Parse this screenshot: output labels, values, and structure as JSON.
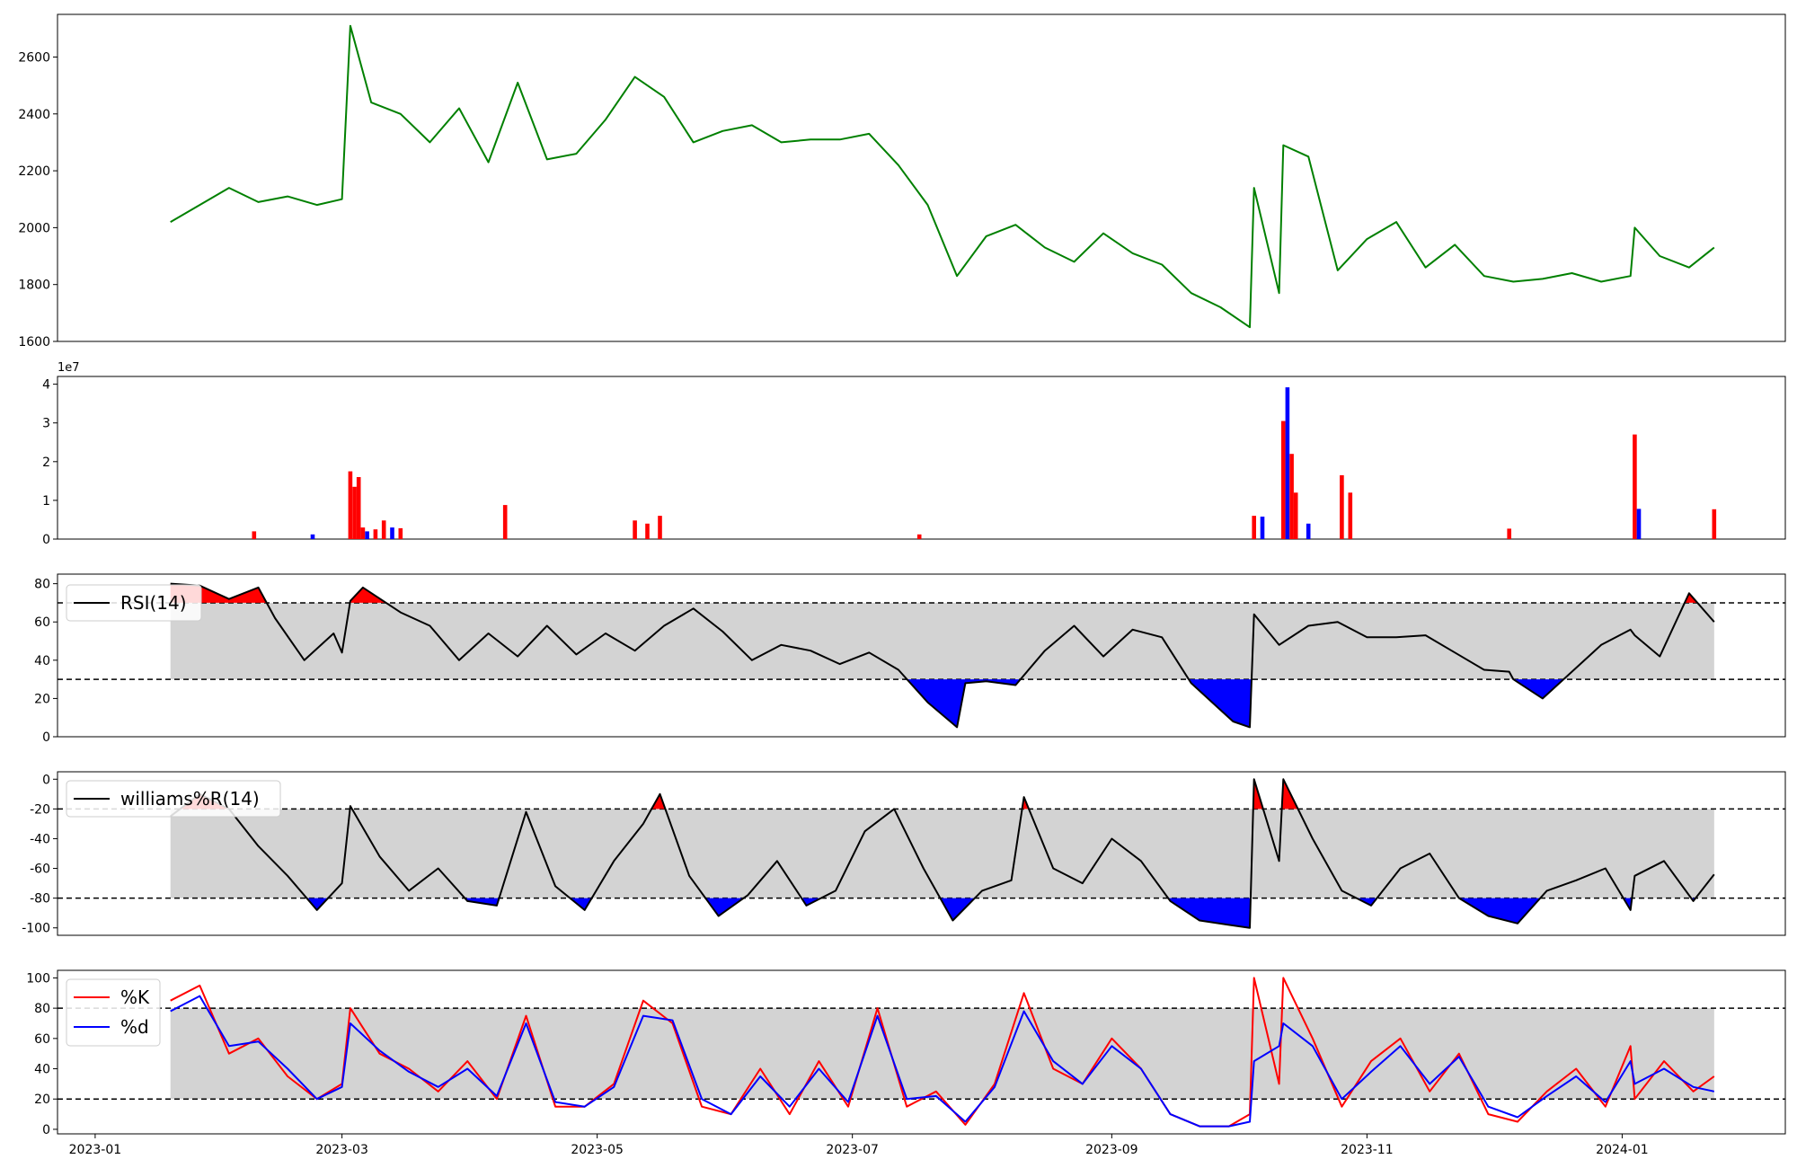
{
  "colors": {
    "price": "#008000",
    "up": "#ff0000",
    "down": "#0000ff",
    "band": "#d3d3d3",
    "line": "#000000",
    "k": "#ff0000",
    "d": "#0000ff"
  },
  "chart_data": [
    {
      "type": "line",
      "panel": "price",
      "ylim": [
        1600,
        2750
      ],
      "yticks": [
        1600,
        1800,
        2000,
        2200,
        2400,
        2600
      ],
      "x": [
        "2023-01-19",
        "2023-01-26",
        "2023-02-02",
        "2023-02-09",
        "2023-02-16",
        "2023-02-23",
        "2023-03-01",
        "2023-03-03",
        "2023-03-08",
        "2023-03-15",
        "2023-03-22",
        "2023-03-29",
        "2023-04-05",
        "2023-04-12",
        "2023-04-19",
        "2023-04-26",
        "2023-05-03",
        "2023-05-10",
        "2023-05-17",
        "2023-05-24",
        "2023-05-31",
        "2023-06-07",
        "2023-06-14",
        "2023-06-21",
        "2023-06-28",
        "2023-07-05",
        "2023-07-12",
        "2023-07-19",
        "2023-07-26",
        "2023-08-02",
        "2023-08-09",
        "2023-08-16",
        "2023-08-23",
        "2023-08-30",
        "2023-09-06",
        "2023-09-13",
        "2023-09-20",
        "2023-09-27",
        "2023-10-04",
        "2023-10-05",
        "2023-10-11",
        "2023-10-12",
        "2023-10-18",
        "2023-10-25",
        "2023-11-01",
        "2023-11-08",
        "2023-11-15",
        "2023-11-22",
        "2023-11-29",
        "2023-12-06",
        "2023-12-13",
        "2023-12-20",
        "2023-12-27",
        "2024-01-03",
        "2024-01-04",
        "2024-01-10",
        "2024-01-17",
        "2024-01-23"
      ],
      "series": [
        {
          "values": [
            2020,
            2080,
            2140,
            2090,
            2110,
            2080,
            2100,
            2710,
            2440,
            2400,
            2300,
            2420,
            2230,
            2510,
            2240,
            2260,
            2380,
            2530,
            2460,
            2300,
            2340,
            2360,
            2300,
            2310,
            2310,
            2330,
            2220,
            2080,
            1830,
            1970,
            2010,
            1930,
            1880,
            1980,
            1910,
            1870,
            1770,
            1720,
            1650,
            2140,
            1770,
            2290,
            2250,
            1850,
            1960,
            2020,
            1860,
            1940,
            1830,
            1810,
            1820,
            1840,
            1810,
            1830,
            2000,
            1900,
            1860,
            1930
          ]
        }
      ]
    },
    {
      "type": "bar",
      "panel": "volume",
      "ylim": [
        0,
        4.2
      ],
      "yticks": [
        0,
        1,
        2,
        3,
        4
      ],
      "exponent_label": "1e7",
      "x": [
        "2023-02-08",
        "2023-02-22",
        "2023-03-03",
        "2023-03-04",
        "2023-03-05",
        "2023-03-06",
        "2023-03-07",
        "2023-03-09",
        "2023-03-11",
        "2023-03-13",
        "2023-03-15",
        "2023-04-09",
        "2023-05-10",
        "2023-05-13",
        "2023-05-16",
        "2023-07-17",
        "2023-10-05",
        "2023-10-07",
        "2023-10-12",
        "2023-10-13",
        "2023-10-14",
        "2023-10-15",
        "2023-10-18",
        "2023-10-26",
        "2023-10-28",
        "2023-12-05",
        "2024-01-04",
        "2024-01-05",
        "2024-01-23"
      ],
      "values": [
        0.2,
        0.12,
        1.75,
        1.35,
        1.6,
        0.3,
        0.2,
        0.25,
        0.48,
        0.3,
        0.28,
        0.88,
        0.48,
        0.4,
        0.6,
        0.12,
        0.6,
        0.58,
        3.05,
        3.92,
        2.2,
        1.2,
        0.4,
        1.65,
        1.2,
        0.27,
        2.7,
        0.78,
        0.77
      ],
      "directions": [
        "up",
        "down",
        "up",
        "up",
        "up",
        "up",
        "down",
        "up",
        "up",
        "down",
        "up",
        "up",
        "up",
        "up",
        "up",
        "up",
        "up",
        "down",
        "up",
        "down",
        "up",
        "up",
        "down",
        "up",
        "up",
        "up",
        "up",
        "down",
        "up"
      ]
    },
    {
      "type": "line",
      "panel": "rsi",
      "ylim": [
        0,
        85
      ],
      "yticks": [
        0,
        20,
        40,
        60,
        80
      ],
      "thresholds": [
        30,
        70
      ],
      "x": [
        "2023-01-19",
        "2023-01-26",
        "2023-02-02",
        "2023-02-09",
        "2023-02-13",
        "2023-02-20",
        "2023-02-27",
        "2023-03-01",
        "2023-03-03",
        "2023-03-06",
        "2023-03-15",
        "2023-03-22",
        "2023-03-29",
        "2023-04-05",
        "2023-04-12",
        "2023-04-19",
        "2023-04-26",
        "2023-05-03",
        "2023-05-10",
        "2023-05-17",
        "2023-05-24",
        "2023-05-31",
        "2023-06-07",
        "2023-06-14",
        "2023-06-21",
        "2023-06-28",
        "2023-07-05",
        "2023-07-12",
        "2023-07-19",
        "2023-07-26",
        "2023-07-28",
        "2023-08-02",
        "2023-08-09",
        "2023-08-16",
        "2023-08-23",
        "2023-08-30",
        "2023-09-06",
        "2023-09-13",
        "2023-09-20",
        "2023-09-27",
        "2023-09-30",
        "2023-10-04",
        "2023-10-05",
        "2023-10-11",
        "2023-10-18",
        "2023-10-25",
        "2023-11-01",
        "2023-11-08",
        "2023-11-15",
        "2023-11-22",
        "2023-11-29",
        "2023-12-05",
        "2023-12-06",
        "2023-12-13",
        "2023-12-20",
        "2023-12-27",
        "2024-01-03",
        "2024-01-04",
        "2024-01-10",
        "2024-01-17",
        "2024-01-23"
      ],
      "series": [
        {
          "name": "RSI(14)",
          "values": [
            80,
            79,
            72,
            78,
            62,
            40,
            54,
            44,
            71,
            78,
            65,
            58,
            40,
            54,
            42,
            58,
            43,
            54,
            45,
            58,
            67,
            55,
            40,
            48,
            45,
            38,
            44,
            35,
            18,
            5,
            28,
            29,
            27,
            45,
            58,
            42,
            56,
            52,
            28,
            14,
            8,
            5,
            64,
            48,
            58,
            60,
            52,
            52,
            53,
            44,
            35,
            34,
            30,
            20,
            34,
            48,
            56,
            53,
            42,
            75,
            60
          ]
        }
      ]
    },
    {
      "type": "line",
      "panel": "williams",
      "ylim": [
        -105,
        5
      ],
      "yticks": [
        -100,
        -80,
        -60,
        -40,
        -20,
        0
      ],
      "thresholds": [
        -80,
        -20
      ],
      "x": [
        "2023-01-19",
        "2023-01-26",
        "2023-02-02",
        "2023-02-09",
        "2023-02-16",
        "2023-02-23",
        "2023-03-01",
        "2023-03-03",
        "2023-03-10",
        "2023-03-17",
        "2023-03-24",
        "2023-03-31",
        "2023-04-07",
        "2023-04-14",
        "2023-04-21",
        "2023-04-28",
        "2023-05-05",
        "2023-05-12",
        "2023-05-16",
        "2023-05-23",
        "2023-05-30",
        "2023-06-06",
        "2023-06-13",
        "2023-06-20",
        "2023-06-27",
        "2023-07-04",
        "2023-07-11",
        "2023-07-18",
        "2023-07-25",
        "2023-08-01",
        "2023-08-08",
        "2023-08-11",
        "2023-08-18",
        "2023-08-25",
        "2023-09-01",
        "2023-09-08",
        "2023-09-15",
        "2023-09-22",
        "2023-09-29",
        "2023-10-04",
        "2023-10-05",
        "2023-10-11",
        "2023-10-12",
        "2023-10-19",
        "2023-10-26",
        "2023-11-02",
        "2023-11-09",
        "2023-11-16",
        "2023-11-23",
        "2023-11-30",
        "2023-12-07",
        "2023-12-14",
        "2023-12-21",
        "2023-12-28",
        "2024-01-03",
        "2024-01-04",
        "2024-01-11",
        "2024-01-18",
        "2024-01-23"
      ],
      "series": [
        {
          "name": "williams%R(14)",
          "values": [
            -25,
            -10,
            -20,
            -45,
            -65,
            -88,
            -70,
            -18,
            -52,
            -75,
            -60,
            -82,
            -85,
            -22,
            -72,
            -88,
            -55,
            -30,
            -10,
            -65,
            -92,
            -78,
            -55,
            -85,
            -75,
            -35,
            -20,
            -60,
            -95,
            -75,
            -68,
            -12,
            -60,
            -70,
            -40,
            -55,
            -82,
            -95,
            -98,
            -100,
            0,
            -55,
            0,
            -40,
            -75,
            -85,
            -60,
            -50,
            -80,
            -92,
            -97,
            -75,
            -68,
            -60,
            -88,
            -65,
            -55,
            -82,
            -64
          ]
        }
      ]
    },
    {
      "type": "line",
      "panel": "stochastic",
      "ylim": [
        -3,
        105
      ],
      "yticks": [
        0,
        20,
        40,
        60,
        80,
        100
      ],
      "thresholds": [
        20,
        80
      ],
      "xticks": [
        "2023-01",
        "2023-03",
        "2023-05",
        "2023-07",
        "2023-09",
        "2023-11",
        "2024-01"
      ],
      "x": [
        "2023-01-19",
        "2023-01-26",
        "2023-02-02",
        "2023-02-09",
        "2023-02-16",
        "2023-02-23",
        "2023-03-01",
        "2023-03-03",
        "2023-03-10",
        "2023-03-17",
        "2023-03-24",
        "2023-03-31",
        "2023-04-07",
        "2023-04-14",
        "2023-04-21",
        "2023-04-28",
        "2023-05-05",
        "2023-05-12",
        "2023-05-19",
        "2023-05-26",
        "2023-06-02",
        "2023-06-09",
        "2023-06-16",
        "2023-06-23",
        "2023-06-30",
        "2023-07-07",
        "2023-07-14",
        "2023-07-21",
        "2023-07-28",
        "2023-08-04",
        "2023-08-11",
        "2023-08-18",
        "2023-08-25",
        "2023-09-01",
        "2023-09-08",
        "2023-09-15",
        "2023-09-22",
        "2023-09-29",
        "2023-10-04",
        "2023-10-05",
        "2023-10-11",
        "2023-10-12",
        "2023-10-19",
        "2023-10-26",
        "2023-11-02",
        "2023-11-09",
        "2023-11-16",
        "2023-11-23",
        "2023-11-30",
        "2023-12-07",
        "2023-12-14",
        "2023-12-21",
        "2023-12-28",
        "2024-01-03",
        "2024-01-04",
        "2024-01-11",
        "2024-01-18",
        "2024-01-23"
      ],
      "series": [
        {
          "name": "%K",
          "values": [
            85,
            95,
            50,
            60,
            35,
            20,
            30,
            80,
            50,
            40,
            25,
            45,
            20,
            75,
            15,
            15,
            30,
            85,
            70,
            15,
            10,
            40,
            10,
            45,
            15,
            80,
            15,
            25,
            3,
            30,
            90,
            40,
            30,
            60,
            40,
            10,
            2,
            2,
            10,
            100,
            30,
            100,
            60,
            15,
            45,
            60,
            25,
            50,
            10,
            5,
            25,
            40,
            15,
            55,
            20,
            45,
            25,
            35
          ]
        },
        {
          "name": "%d",
          "values": [
            78,
            88,
            55,
            58,
            40,
            20,
            28,
            70,
            52,
            38,
            28,
            40,
            22,
            70,
            18,
            15,
            28,
            75,
            72,
            20,
            10,
            35,
            15,
            40,
            18,
            75,
            20,
            22,
            5,
            28,
            78,
            45,
            30,
            55,
            40,
            10,
            2,
            2,
            5,
            45,
            55,
            70,
            55,
            20,
            38,
            55,
            30,
            48,
            15,
            8,
            22,
            35,
            18,
            45,
            30,
            40,
            28,
            25
          ]
        }
      ]
    }
  ]
}
